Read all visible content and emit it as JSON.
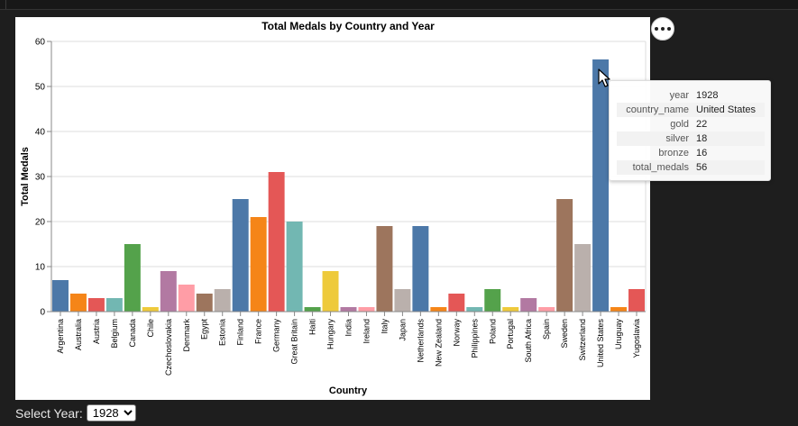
{
  "colors": {
    "page_bg": "#1e1e1e",
    "palette": [
      "#4c78a8",
      "#f58518",
      "#e45756",
      "#72b7b2",
      "#54a24b",
      "#eeca3b",
      "#b279a2",
      "#ff9da6",
      "#9d755d",
      "#bab0ac"
    ]
  },
  "chart_data": {
    "type": "bar",
    "title": "Total Medals by Country and Year",
    "xlabel": "Country",
    "ylabel": "Total Medals",
    "ylim": [
      0,
      60
    ],
    "yticks": [
      0,
      10,
      20,
      30,
      40,
      50,
      60
    ],
    "grid": true,
    "categories": [
      "Argentina",
      "Australia",
      "Austria",
      "Belgium",
      "Canada",
      "Chile",
      "Czechoslovakia",
      "Denmark",
      "Egypt",
      "Estonia",
      "Finland",
      "France",
      "Germany",
      "Great Britain",
      "Haiti",
      "Hungary",
      "India",
      "Ireland",
      "Italy",
      "Japan",
      "Netherlands",
      "New Zealand",
      "Norway",
      "Philippines",
      "Poland",
      "Portugal",
      "South Africa",
      "Spain",
      "Sweden",
      "Switzerland",
      "United States",
      "Uruguay",
      "Yugoslavia"
    ],
    "values": [
      7,
      4,
      3,
      3,
      15,
      1,
      9,
      6,
      4,
      5,
      25,
      21,
      31,
      20,
      1,
      9,
      1,
      1,
      19,
      5,
      19,
      1,
      4,
      1,
      5,
      1,
      3,
      1,
      25,
      15,
      56,
      1,
      5
    ]
  },
  "tooltip": {
    "rows": [
      {
        "key": "year",
        "value": "1928"
      },
      {
        "key": "country_name",
        "value": "United States"
      },
      {
        "key": "gold",
        "value": "22"
      },
      {
        "key": "silver",
        "value": "18"
      },
      {
        "key": "bronze",
        "value": "16"
      },
      {
        "key": "total_medals",
        "value": "56"
      }
    ]
  },
  "controls": {
    "year_label": "Select Year:",
    "year_selected": "1928"
  },
  "icons": {
    "menu": "more-horizontal-icon",
    "cursor": "mouse-pointer-icon"
  }
}
